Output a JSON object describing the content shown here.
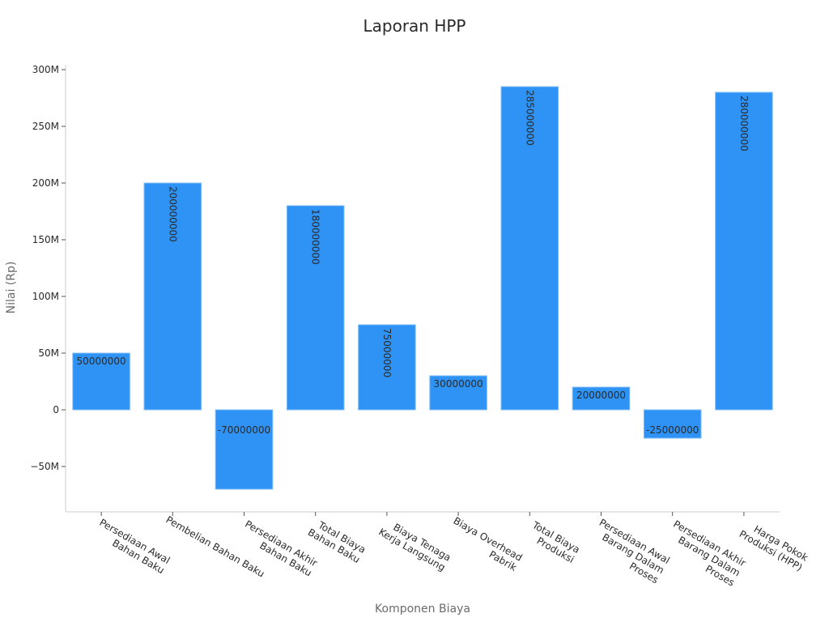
{
  "chart_data": {
    "type": "bar",
    "title": "Laporan HPP",
    "xlabel": "Komponen Biaya",
    "ylabel": "Nilai (Rp)",
    "ylim": [
      -90000000,
      300000000
    ],
    "y_ticks": [
      -50000000,
      0,
      50000000,
      100000000,
      150000000,
      200000000,
      250000000,
      300000000
    ],
    "y_tick_labels": [
      "−50M",
      "0",
      "50M",
      "100M",
      "150M",
      "200M",
      "250M",
      "300M"
    ],
    "categories": [
      "Persediaan Awal Bahan Baku",
      "Pembelian Bahan Baku",
      "Persediaan Akhir Bahan Baku",
      "Total Biaya Bahan Baku",
      "Biaya Tenaga Kerja Langsung",
      "Biaya Overhead Pabrik",
      "Total Biaya Produksi",
      "Persediaan Awal Barang Dalam Proses",
      "Persediaan Akhir Barang Dalam Proses",
      "Harga Pokok Produksi (HPP)"
    ],
    "category_label_lines": [
      [
        "Persediaan Awal",
        "Bahan Baku"
      ],
      [
        "Pembelian Bahan Baku"
      ],
      [
        "Persediaan Akhir",
        "Bahan Baku"
      ],
      [
        "Total Biaya",
        "Bahan Baku"
      ],
      [
        "Biaya Tenaga",
        "Kerja Langsung"
      ],
      [
        "Biaya Overhead",
        "Pabrik"
      ],
      [
        "Total Biaya",
        "Produksi"
      ],
      [
        "Persediaan Awal",
        "Barang Dalam",
        "Proses"
      ],
      [
        "Persediaan Akhir",
        "Barang Dalam",
        "Proses"
      ],
      [
        "Harga Pokok",
        "Produksi (HPP)"
      ]
    ],
    "values": [
      50000000,
      200000000,
      -70000000,
      180000000,
      75000000,
      30000000,
      285000000,
      20000000,
      -25000000,
      280000000
    ],
    "data_labels": [
      "50000000",
      "200000000",
      "-70000000",
      "180000000",
      "75000000",
      "30000000",
      "285000000",
      "20000000",
      "-25000000",
      "280000000"
    ],
    "bar_color": "#2e93f5",
    "bar_edge_color": "#7fbcf8",
    "grid": false
  }
}
